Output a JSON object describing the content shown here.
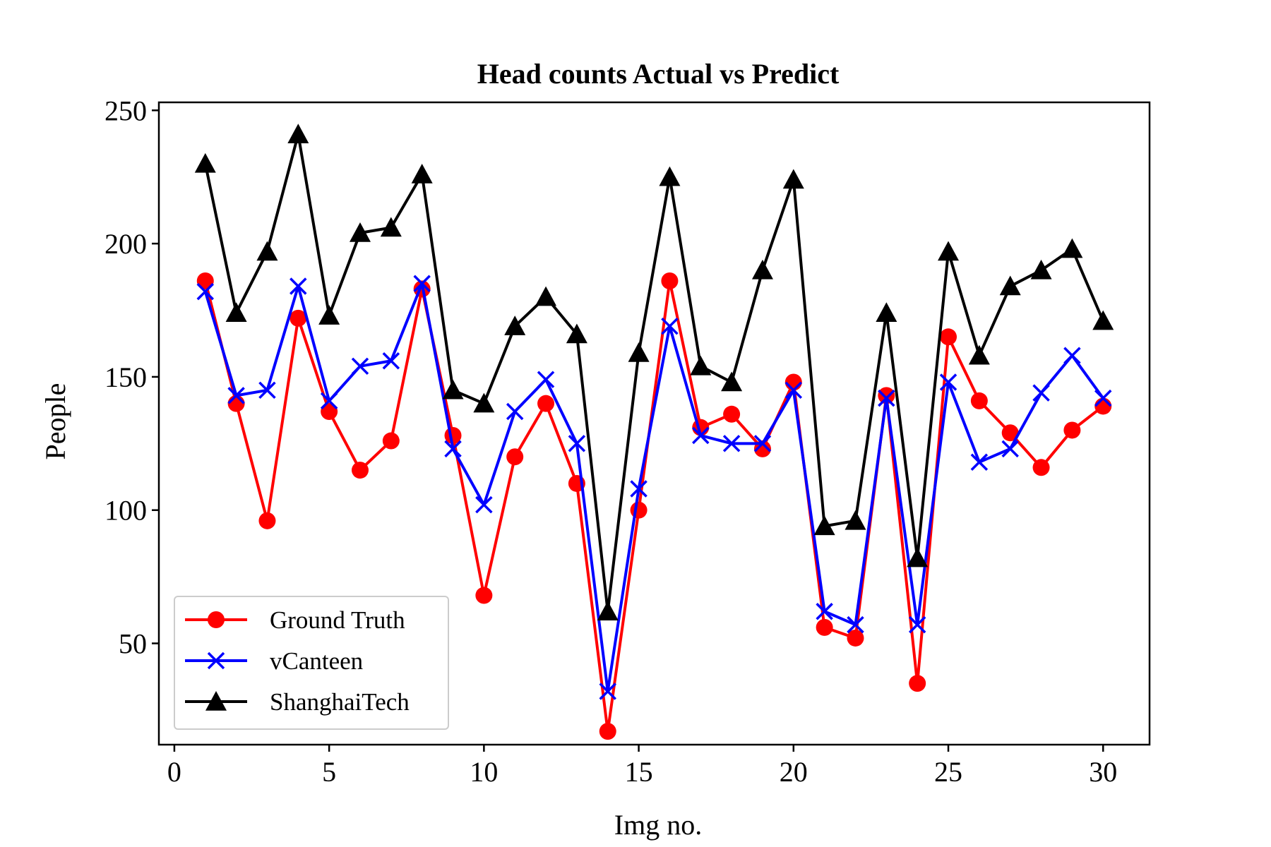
{
  "chart_data": {
    "type": "line",
    "title": "Head counts Actual vs Predict",
    "xlabel": "Img no.",
    "ylabel": "People",
    "xlim": [
      -0.5,
      31.5
    ],
    "ylim": [
      12,
      253
    ],
    "xticks": [
      0,
      5,
      10,
      15,
      20,
      25,
      30
    ],
    "yticks": [
      50,
      100,
      150,
      200,
      250
    ],
    "x": [
      1,
      2,
      3,
      4,
      5,
      6,
      7,
      8,
      9,
      10,
      11,
      12,
      13,
      14,
      15,
      16,
      17,
      18,
      19,
      20,
      21,
      22,
      23,
      24,
      25,
      26,
      27,
      28,
      29,
      30
    ],
    "series": [
      {
        "name": "Ground Truth",
        "color": "#ff0000",
        "marker": "circle",
        "values": [
          186,
          140,
          96,
          172,
          137,
          115,
          126,
          183,
          128,
          68,
          120,
          140,
          110,
          17,
          100,
          186,
          131,
          136,
          123,
          148,
          56,
          52,
          143,
          35,
          165,
          141,
          129,
          116,
          130,
          139
        ]
      },
      {
        "name": "vCanteen",
        "color": "#0000ff",
        "marker": "x",
        "values": [
          182,
          143,
          145,
          184,
          141,
          154,
          156,
          185,
          123,
          102,
          137,
          149,
          125,
          32,
          108,
          169,
          128,
          125,
          125,
          145,
          62,
          57,
          142,
          57,
          148,
          118,
          123,
          144,
          158,
          142
        ]
      },
      {
        "name": "ShanghaiTech",
        "color": "#000000",
        "marker": "triangle",
        "values": [
          230,
          174,
          197,
          241,
          173,
          204,
          206,
          226,
          145,
          140,
          169,
          180,
          166,
          62,
          159,
          225,
          154,
          148,
          190,
          224,
          94,
          96,
          174,
          82,
          197,
          158,
          184,
          190,
          198,
          171
        ]
      }
    ],
    "legend_position": "lower-left",
    "grid": false
  }
}
